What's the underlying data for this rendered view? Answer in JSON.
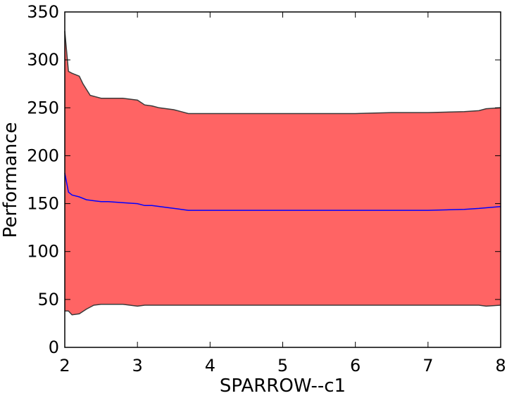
{
  "chart_data": {
    "type": "area",
    "title": "",
    "xlabel": "SPARROW--c1",
    "ylabel": "Performance",
    "xlim": [
      2,
      8
    ],
    "ylim": [
      0,
      350
    ],
    "xticks": [
      "2",
      "3",
      "4",
      "5",
      "6",
      "7",
      "8"
    ],
    "yticks": [
      "0",
      "50",
      "100",
      "150",
      "200",
      "250",
      "300",
      "350"
    ],
    "grid": false,
    "legend": "none",
    "colors": {
      "band": "#ff6464",
      "band_edge": "#3a3a3a",
      "mean_line": "#0000ff"
    },
    "series": [
      {
        "role": "upper",
        "x": [
          2.0,
          2.05,
          2.1,
          2.2,
          2.25,
          2.35,
          2.45,
          2.5,
          2.6,
          2.7,
          2.8,
          3.0,
          3.1,
          3.2,
          3.3,
          3.5,
          3.6,
          3.7,
          4.0,
          4.5,
          5.0,
          5.5,
          6.0,
          6.5,
          7.0,
          7.5,
          7.7,
          7.8,
          8.0
        ],
        "y": [
          330,
          288,
          286,
          283,
          275,
          263,
          261,
          260,
          260,
          260,
          260,
          258,
          253,
          252,
          250,
          248,
          246,
          244,
          244,
          244,
          244,
          244,
          244,
          245,
          245,
          246,
          247,
          249,
          250
        ]
      },
      {
        "role": "mean",
        "x": [
          2.0,
          2.05,
          2.1,
          2.2,
          2.3,
          2.4,
          2.5,
          2.6,
          2.8,
          3.0,
          3.1,
          3.2,
          3.4,
          3.6,
          3.7,
          4.0,
          4.5,
          5.0,
          5.5,
          6.0,
          6.5,
          7.0,
          7.5,
          7.7,
          8.0
        ],
        "y": [
          182,
          162,
          159,
          157,
          154,
          153,
          152,
          152,
          151,
          150,
          148,
          148,
          146,
          144,
          143,
          143,
          143,
          143,
          143,
          143,
          143,
          143,
          144,
          145,
          147
        ]
      },
      {
        "role": "lower",
        "x": [
          2.0,
          2.05,
          2.1,
          2.2,
          2.3,
          2.4,
          2.5,
          2.8,
          3.0,
          3.1,
          3.4,
          3.6,
          3.7,
          4.0,
          5.0,
          6.0,
          7.0,
          7.5,
          7.7,
          7.8,
          8.0
        ],
        "y": [
          38,
          38,
          34,
          35,
          40,
          44,
          45,
          45,
          43,
          44,
          44,
          44,
          44,
          44,
          44,
          44,
          44,
          44,
          44,
          43,
          44
        ]
      }
    ]
  }
}
